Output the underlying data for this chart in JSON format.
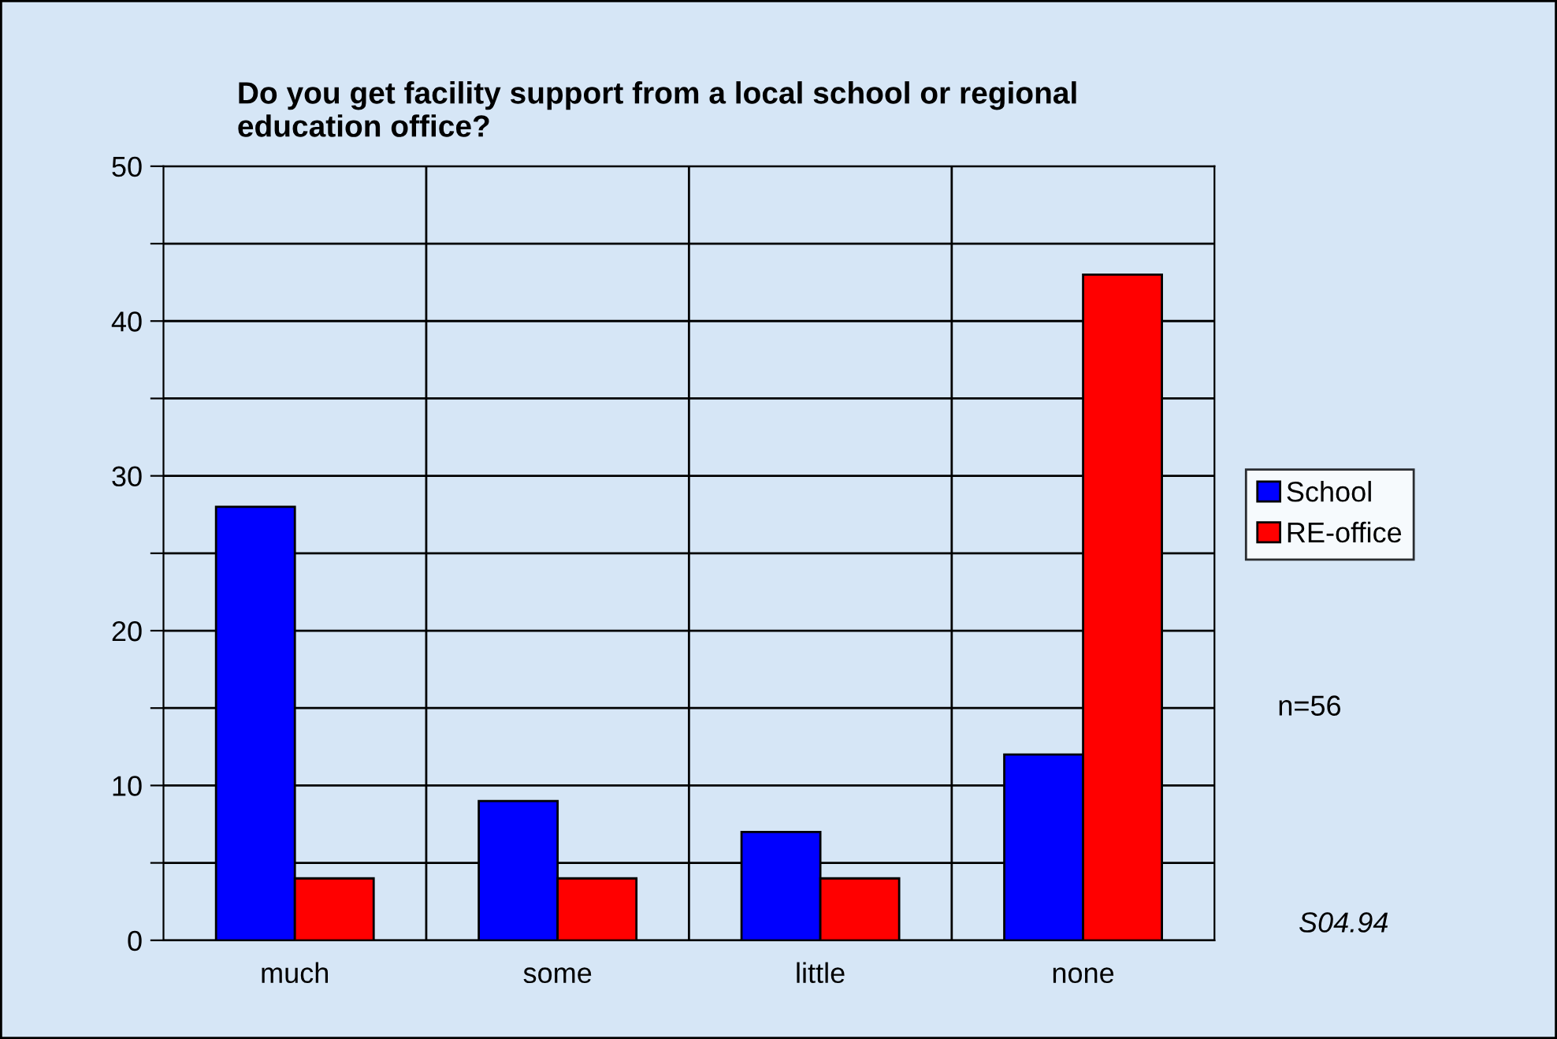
{
  "chart_data": {
    "type": "bar",
    "title": "Do you get facility support from a local school or regional\neducation office?",
    "categories": [
      "much",
      "some",
      "little",
      "none"
    ],
    "series": [
      {
        "name": "School",
        "color": "#0000ff",
        "values": [
          28,
          9,
          7,
          12
        ]
      },
      {
        "name": "RE-office",
        "color": "#ff0000",
        "values": [
          4,
          4,
          4,
          43
        ]
      }
    ],
    "ylim": [
      0,
      50
    ],
    "yticks": [
      0,
      {
        "value": 5,
        "label": null
      },
      10,
      {
        "value": 15,
        "label": null
      },
      20,
      {
        "value": 25,
        "label": null
      },
      30,
      {
        "value": 35,
        "label": null
      },
      40,
      {
        "value": 45,
        "label": null
      },
      50
    ],
    "grid": true,
    "legend": "right",
    "annotations": [
      "n=56",
      "S04.94"
    ]
  }
}
